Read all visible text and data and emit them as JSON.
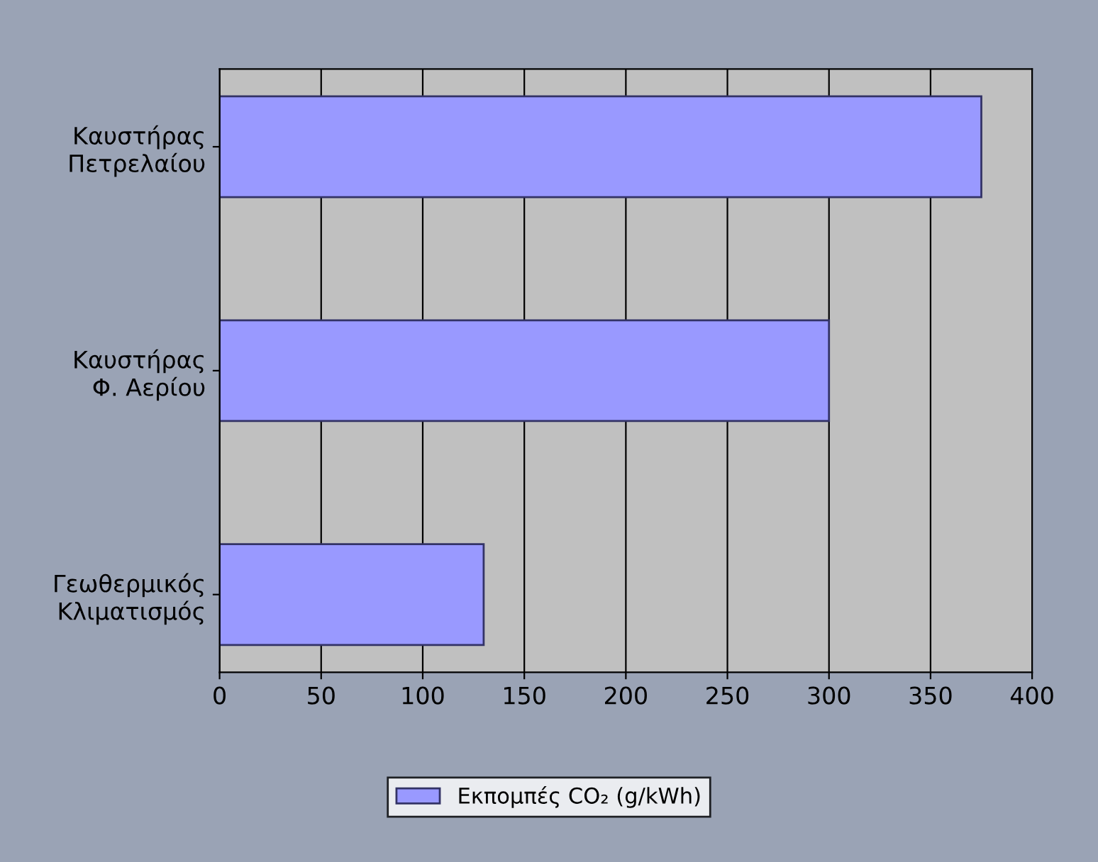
{
  "chart_data": {
    "type": "bar",
    "orientation": "horizontal",
    "categories": [
      "Καυστήρας\nΠετρελαίου",
      "Καυστήρας\nΦ. Αερίου",
      "Γεωθερμικός\nΚλιματισμός"
    ],
    "series": [
      {
        "name": "Εκπομπές CO₂ (g/kWh)",
        "color": "#9999ff",
        "values": [
          375,
          300,
          130
        ]
      }
    ],
    "xlim": [
      0,
      400
    ],
    "xticks": [
      0,
      50,
      100,
      150,
      200,
      250,
      300,
      350,
      400
    ],
    "grid": "x",
    "legend": "bottom"
  }
}
